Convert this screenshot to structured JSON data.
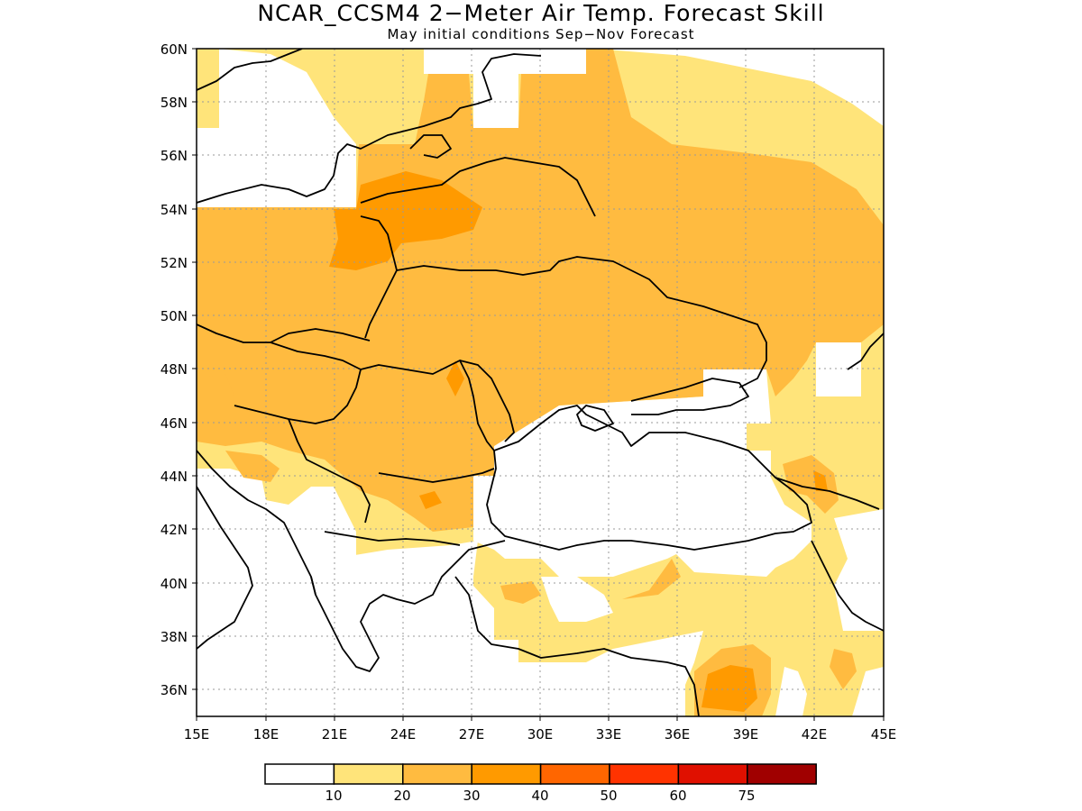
{
  "title": "NCAR_CCSM4 2−Meter Air Temp. Forecast Skill",
  "subtitle": "May initial conditions   Sep−Nov Forecast",
  "axes": {
    "lat_labels": [
      "60N",
      "58N",
      "56N",
      "54N",
      "52N",
      "50N",
      "48N",
      "46N",
      "44N",
      "42N",
      "40N",
      "38N",
      "36N"
    ],
    "lon_labels": [
      "15E",
      "18E",
      "21E",
      "24E",
      "27E",
      "30E",
      "33E",
      "36E",
      "39E",
      "42E",
      "45E"
    ]
  },
  "colorbar": {
    "colors": [
      "#ffffff",
      "#ffe47a",
      "#ffbb40",
      "#ff9a00",
      "#ff6600",
      "#ff3300",
      "#e01000",
      "#a00000"
    ],
    "labels": [
      "10",
      "20",
      "30",
      "40",
      "50",
      "60",
      "75"
    ]
  },
  "fill_colors": {
    "c10": "#ffe47a",
    "c20": "#ffbb40",
    "c30": "#ff9a00",
    "coast": "#000000",
    "grid": "#9a9a9a"
  }
}
